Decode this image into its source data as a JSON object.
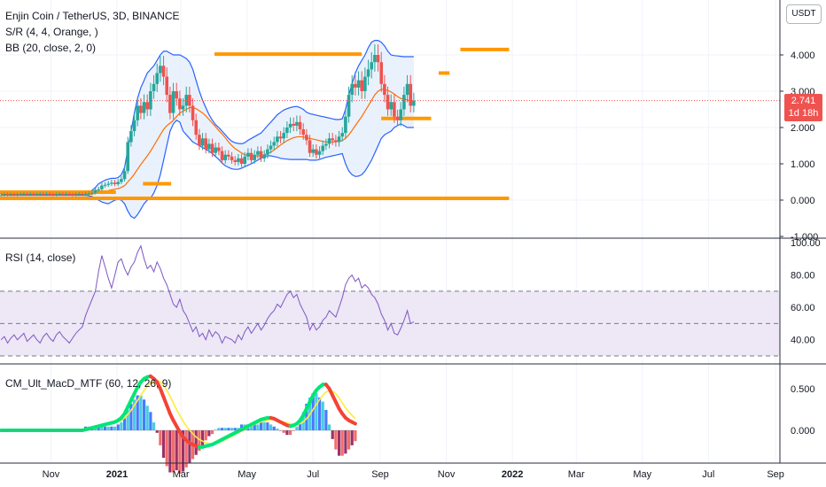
{
  "symbol_title": "Enjin Coin / TetherUS, 3D, BINANCE",
  "legends": {
    "sr": "S/R (4, 4, Orange, )",
    "bb": "BB (20, close, 2, 0)",
    "rsi": "RSI (14, close)",
    "macd": "CM_Ult_MacD_MTF (60, 12, 26, 9)"
  },
  "currency_button": "USDT",
  "last_price": "2.741",
  "countdown": "1d 18h",
  "colors": {
    "up": "#26a69a",
    "down": "#ef5350",
    "sr": "#ff9800",
    "bb": "#2962ff",
    "bb_fill": "#e3eefb",
    "sma": "#ff6d00",
    "rsi": "#7e57c2",
    "rsi_band": "#ede7f6",
    "macd_up": "#00e676",
    "macd_down": "#f44336",
    "signal": "#ffeb3b"
  },
  "chart_data": [
    {
      "type": "candlestick",
      "title": "Enjin Coin / TetherUS, 3D, BINANCE",
      "y_ticks": [
        "-1.000",
        "0.000",
        "1.000",
        "2.000",
        "3.000",
        "4.000"
      ],
      "ylim": [
        -1.0,
        4.6
      ],
      "x_ticks": [
        "Nov",
        "2021",
        "Mar",
        "May",
        "Jul",
        "Sep",
        "Nov",
        "2022",
        "Mar",
        "May",
        "Jul",
        "Sep"
      ],
      "x_range": [
        "2020-09-15",
        "2022-09-05"
      ],
      "support_resistance": [
        {
          "from": "2020-09-15",
          "to": "2020-12-31",
          "price": 0.22
        },
        {
          "from": "2020-09-15",
          "to": "2021-12-29",
          "price": 0.05
        },
        {
          "from": "2021-01-25",
          "to": "2021-02-20",
          "price": 0.45
        },
        {
          "from": "2021-04-01",
          "to": "2021-08-15",
          "price": 4.02
        },
        {
          "from": "2021-09-02",
          "to": "2021-10-18",
          "price": 2.25
        },
        {
          "from": "2021-10-25",
          "to": "2021-11-04",
          "price": 3.5
        },
        {
          "from": "2021-11-14",
          "to": "2021-12-29",
          "price": 4.15
        }
      ],
      "close": [
        0.14,
        0.15,
        0.14,
        0.15,
        0.14,
        0.15,
        0.15,
        0.16,
        0.15,
        0.16,
        0.15,
        0.15,
        0.16,
        0.15,
        0.16,
        0.15,
        0.14,
        0.15,
        0.16,
        0.15,
        0.16,
        0.15,
        0.14,
        0.15,
        0.16,
        0.15,
        0.17,
        0.18,
        0.2,
        0.28,
        0.3,
        0.4,
        0.42,
        0.45,
        0.48,
        0.44,
        0.5,
        0.58,
        0.8,
        1.6,
        1.9,
        2.2,
        2.6,
        2.4,
        2.7,
        2.5,
        3.0,
        3.2,
        3.5,
        3.7,
        3.4,
        2.9,
        2.4,
        3.0,
        2.8,
        2.5,
        2.6,
        2.9,
        2.6,
        2.2,
        1.8,
        1.5,
        1.7,
        1.4,
        1.55,
        1.3,
        1.45,
        1.35,
        1.1,
        1.25,
        1.2,
        1.1,
        1.05,
        1.15,
        1.0,
        1.2,
        1.3,
        1.1,
        1.25,
        1.35,
        1.15,
        1.25,
        1.4,
        1.5,
        1.6,
        1.75,
        1.7,
        1.85,
        2.0,
        2.1,
        2.05,
        2.15,
        1.95,
        1.8,
        1.65,
        1.3,
        1.4,
        1.25,
        1.35,
        1.5,
        1.55,
        1.7,
        1.65,
        1.6,
        1.75,
        1.85,
        2.3,
        2.9,
        3.2,
        3.1,
        3.3,
        3.0,
        3.4,
        3.6,
        3.8,
        4.0,
        3.8,
        3.2,
        2.9,
        2.5,
        2.7,
        2.3,
        2.2,
        2.5,
        2.9,
        3.2,
        2.6,
        2.741
      ],
      "sma20": [
        0.15,
        0.15,
        0.15,
        0.15,
        0.15,
        0.15,
        0.15,
        0.15,
        0.15,
        0.15,
        0.15,
        0.15,
        0.15,
        0.15,
        0.15,
        0.15,
        0.15,
        0.15,
        0.15,
        0.15,
        0.15,
        0.15,
        0.15,
        0.15,
        0.15,
        0.15,
        0.16,
        0.16,
        0.17,
        0.18,
        0.2,
        0.22,
        0.24,
        0.26,
        0.28,
        0.3,
        0.32,
        0.35,
        0.4,
        0.5,
        0.6,
        0.72,
        0.85,
        0.98,
        1.1,
        1.22,
        1.35,
        1.5,
        1.65,
        1.8,
        1.95,
        2.05,
        2.12,
        2.2,
        2.3,
        2.4,
        2.45,
        2.5,
        2.55,
        2.55,
        2.52,
        2.46,
        2.4,
        2.32,
        2.22,
        2.12,
        2.02,
        1.92,
        1.82,
        1.72,
        1.6,
        1.5,
        1.42,
        1.36,
        1.3,
        1.25,
        1.23,
        1.22,
        1.21,
        1.22,
        1.23,
        1.25,
        1.28,
        1.32,
        1.38,
        1.45,
        1.52,
        1.58,
        1.64,
        1.68,
        1.72,
        1.74,
        1.75,
        1.74,
        1.72,
        1.7,
        1.68,
        1.66,
        1.64,
        1.62,
        1.6,
        1.6,
        1.6,
        1.61,
        1.62,
        1.64,
        1.7,
        1.8,
        1.92,
        2.05,
        2.18,
        2.3,
        2.45,
        2.6,
        2.75,
        2.9,
        3.0,
        3.05,
        3.05,
        3.02,
        2.98,
        2.92,
        2.85,
        2.8,
        2.78,
        2.76,
        2.72,
        2.7
      ],
      "bb_upper": [
        0.17,
        0.17,
        0.17,
        0.17,
        0.17,
        0.17,
        0.17,
        0.17,
        0.17,
        0.17,
        0.17,
        0.17,
        0.17,
        0.17,
        0.17,
        0.17,
        0.17,
        0.17,
        0.17,
        0.17,
        0.17,
        0.17,
        0.17,
        0.17,
        0.17,
        0.17,
        0.19,
        0.22,
        0.27,
        0.35,
        0.45,
        0.5,
        0.55,
        0.58,
        0.6,
        0.6,
        0.62,
        0.7,
        0.9,
        1.4,
        1.9,
        2.4,
        2.8,
        3.1,
        3.3,
        3.5,
        3.6,
        3.7,
        3.85,
        4.0,
        4.1,
        4.1,
        4.05,
        4.0,
        4.0,
        4.0,
        3.95,
        3.9,
        3.8,
        3.6,
        3.3,
        3.0,
        2.75,
        2.55,
        2.35,
        2.2,
        2.08,
        2.0,
        1.9,
        1.8,
        1.7,
        1.62,
        1.58,
        1.56,
        1.55,
        1.58,
        1.65,
        1.7,
        1.75,
        1.8,
        1.85,
        1.95,
        2.05,
        2.15,
        2.25,
        2.35,
        2.42,
        2.48,
        2.52,
        2.55,
        2.57,
        2.58,
        2.55,
        2.5,
        2.42,
        2.38,
        2.36,
        2.34,
        2.32,
        2.3,
        2.28,
        2.26,
        2.24,
        2.22,
        2.22,
        2.24,
        2.5,
        2.9,
        3.2,
        3.5,
        3.7,
        3.85,
        4.0,
        4.2,
        4.35,
        4.4,
        4.4,
        4.35,
        4.25,
        4.1,
        4.0,
        3.98,
        3.97,
        3.96,
        3.95,
        3.95,
        3.95,
        3.95
      ],
      "bb_lower": [
        0.13,
        0.13,
        0.13,
        0.13,
        0.13,
        0.13,
        0.13,
        0.13,
        0.13,
        0.13,
        0.13,
        0.13,
        0.13,
        0.13,
        0.13,
        0.13,
        0.13,
        0.13,
        0.13,
        0.13,
        0.13,
        0.13,
        0.13,
        0.13,
        0.13,
        0.13,
        0.13,
        0.12,
        0.1,
        0.05,
        0.0,
        -0.05,
        -0.08,
        -0.1,
        -0.05,
        0.0,
        0.02,
        0.0,
        -0.1,
        -0.3,
        -0.45,
        -0.5,
        -0.4,
        -0.25,
        -0.1,
        0.0,
        0.05,
        0.2,
        0.4,
        0.7,
        1.1,
        1.5,
        1.9,
        2.1,
        2.2,
        2.15,
        1.9,
        1.8,
        1.7,
        1.6,
        1.55,
        1.5,
        1.45,
        1.4,
        1.35,
        1.28,
        1.2,
        1.12,
        1.02,
        0.95,
        0.9,
        0.86,
        0.85,
        0.85,
        0.88,
        0.92,
        0.96,
        1.0,
        1.05,
        1.1,
        1.15,
        1.2,
        1.22,
        1.22,
        1.2,
        1.18,
        1.15,
        1.14,
        1.13,
        1.12,
        1.12,
        1.12,
        1.12,
        1.12,
        1.12,
        1.1,
        1.1,
        1.1,
        1.12,
        1.15,
        1.18,
        1.2,
        1.22,
        1.24,
        1.26,
        1.28,
        1.0,
        0.8,
        0.7,
        0.65,
        0.66,
        0.7,
        0.8,
        0.95,
        1.1,
        1.3,
        1.5,
        1.7,
        1.8,
        1.85,
        1.9,
        2.0,
        2.05,
        2.1,
        2.05,
        2.0,
        2.0,
        2.0
      ]
    },
    {
      "type": "line",
      "title": "RSI (14, close)",
      "y_ticks": [
        "40.00",
        "60.00",
        "80.00",
        "100.00"
      ],
      "ylim": [
        25,
        105
      ],
      "bands": [
        30,
        50,
        70
      ],
      "values": [
        40,
        42,
        38,
        41,
        43,
        40,
        42,
        44,
        39,
        41,
        43,
        40,
        38,
        42,
        44,
        41,
        39,
        43,
        45,
        42,
        40,
        38,
        41,
        44,
        46,
        48,
        55,
        60,
        65,
        70,
        82,
        92,
        85,
        78,
        72,
        80,
        88,
        90,
        84,
        80,
        85,
        88,
        94,
        98,
        90,
        84,
        86,
        82,
        88,
        84,
        78,
        74,
        68,
        62,
        60,
        65,
        58,
        55,
        50,
        45,
        48,
        42,
        44,
        40,
        46,
        42,
        45,
        43,
        38,
        42,
        41,
        40,
        38,
        43,
        40,
        45,
        48,
        44,
        47,
        50,
        46,
        49,
        53,
        56,
        58,
        62,
        60,
        64,
        68,
        70,
        66,
        68,
        62,
        58,
        54,
        46,
        50,
        46,
        48,
        52,
        54,
        58,
        56,
        54,
        60,
        66,
        74,
        78,
        80,
        76,
        78,
        72,
        74,
        72,
        68,
        66,
        62,
        56,
        52,
        46,
        50,
        44,
        43,
        47,
        52,
        58,
        50,
        51
      ],
      "x_range": [
        "2020-09-15",
        "2022-09-05"
      ]
    },
    {
      "type": "line",
      "title": "CM_Ult_MacD_MTF (60, 12, 26, 9)",
      "y_ticks": [
        "0.000",
        "0.500"
      ],
      "ylim": [
        -0.3,
        0.75
      ],
      "macd": [
        0.0,
        0.0,
        0.0,
        0.0,
        0.0,
        0.0,
        0.0,
        0.0,
        0.0,
        0.0,
        0.0,
        0.0,
        0.0,
        0.0,
        0.0,
        0.0,
        0.0,
        0.0,
        0.0,
        0.0,
        0.0,
        0.0,
        0.0,
        0.0,
        0.0,
        0.0,
        0.01,
        0.02,
        0.03,
        0.04,
        0.05,
        0.06,
        0.07,
        0.08,
        0.09,
        0.1,
        0.12,
        0.15,
        0.2,
        0.28,
        0.36,
        0.44,
        0.52,
        0.58,
        0.62,
        0.64,
        0.65,
        0.62,
        0.58,
        0.5,
        0.4,
        0.3,
        0.2,
        0.12,
        0.05,
        -0.02,
        -0.08,
        -0.12,
        -0.15,
        -0.17,
        -0.19,
        -0.2,
        -0.2,
        -0.19,
        -0.18,
        -0.17,
        -0.15,
        -0.13,
        -0.11,
        -0.09,
        -0.07,
        -0.05,
        -0.03,
        -0.01,
        0.01,
        0.03,
        0.05,
        0.07,
        0.09,
        0.11,
        0.13,
        0.14,
        0.15,
        0.15,
        0.14,
        0.12,
        0.1,
        0.08,
        0.06,
        0.05,
        0.06,
        0.08,
        0.12,
        0.18,
        0.26,
        0.34,
        0.42,
        0.48,
        0.52,
        0.55,
        0.55,
        0.5,
        0.42,
        0.34,
        0.26,
        0.2,
        0.15,
        0.12,
        0.1,
        0.08
      ],
      "signal": [
        0.0,
        0.0,
        0.0,
        0.0,
        0.0,
        0.0,
        0.0,
        0.0,
        0.0,
        0.0,
        0.0,
        0.0,
        0.0,
        0.0,
        0.0,
        0.0,
        0.0,
        0.0,
        0.0,
        0.0,
        0.0,
        0.0,
        0.0,
        0.0,
        0.0,
        0.0,
        0.0,
        0.01,
        0.02,
        0.03,
        0.04,
        0.05,
        0.06,
        0.07,
        0.08,
        0.09,
        0.1,
        0.12,
        0.15,
        0.19,
        0.24,
        0.3,
        0.36,
        0.42,
        0.48,
        0.53,
        0.57,
        0.59,
        0.6,
        0.58,
        0.54,
        0.48,
        0.41,
        0.33,
        0.25,
        0.18,
        0.11,
        0.05,
        0.0,
        -0.04,
        -0.08,
        -0.11,
        -0.13,
        -0.15,
        -0.16,
        -0.16,
        -0.16,
        -0.15,
        -0.13,
        -0.11,
        -0.09,
        -0.07,
        -0.05,
        -0.03,
        -0.01,
        0.01,
        0.03,
        0.05,
        0.07,
        0.09,
        0.1,
        0.11,
        0.12,
        0.13,
        0.13,
        0.12,
        0.11,
        0.1,
        0.09,
        0.08,
        0.07,
        0.07,
        0.08,
        0.1,
        0.14,
        0.19,
        0.25,
        0.31,
        0.37,
        0.42,
        0.46,
        0.48,
        0.47,
        0.44,
        0.39,
        0.33,
        0.27,
        0.22,
        0.18,
        0.14
      ],
      "x_range": [
        "2020-09-15",
        "2022-01-20"
      ]
    }
  ]
}
